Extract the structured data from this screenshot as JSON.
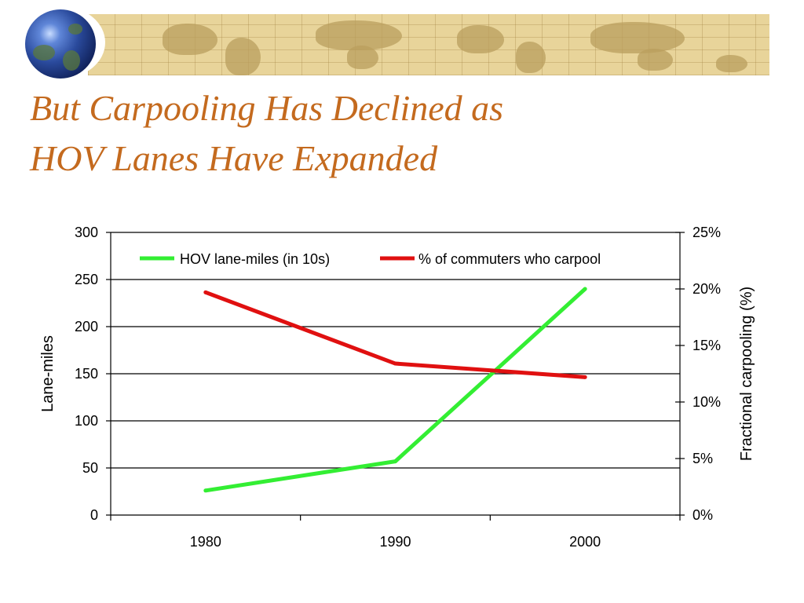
{
  "slide": {
    "title_line1": "But Carpooling Has Declined as",
    "title_line2": "HOV Lanes Have Expanded"
  },
  "colors": {
    "title": "#c46a1e",
    "hov_line": "#33ee33",
    "carpool_line": "#e01010",
    "banner": "#e8d49a"
  },
  "chart_data": {
    "type": "line",
    "x": [
      1980,
      1990,
      2000
    ],
    "x_ticks": [
      "1980",
      "1990",
      "2000"
    ],
    "series": [
      {
        "name": "HOV lane-miles (in 10s)",
        "axis": "left",
        "color": "#33ee33",
        "values": [
          26,
          57,
          240
        ]
      },
      {
        "name": "% of commuters who carpool",
        "axis": "right",
        "color": "#e01010",
        "values": [
          19.7,
          13.4,
          12.2
        ]
      }
    ],
    "y_left": {
      "label": "Lane-miles",
      "ylim": [
        0,
        300
      ],
      "ticks": [
        "0",
        "50",
        "100",
        "150",
        "200",
        "250",
        "300"
      ]
    },
    "y_right": {
      "label": "Fractional carpooling (%)",
      "ylim": [
        0,
        25
      ],
      "ticks": [
        "0%",
        "5%",
        "10%",
        "15%",
        "20%",
        "25%"
      ]
    },
    "grid": "horizontal",
    "legend": "top"
  }
}
